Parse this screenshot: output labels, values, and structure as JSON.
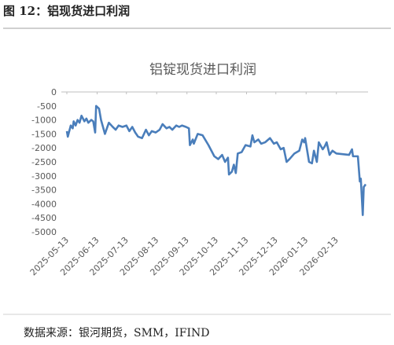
{
  "header": {
    "title": "图 12：铝现货进口利润"
  },
  "source": "数据来源：银河期货，SMM，IFIND",
  "chart_data": {
    "type": "line",
    "title": "铝锭现货进口利润",
    "x": [
      "2025-05-13",
      "2025-05-14",
      "2025-05-17",
      "2025-05-19",
      "2025-05-20",
      "2025-05-22",
      "2025-05-24",
      "2025-05-26",
      "2025-05-28",
      "2025-05-31",
      "2025-06-02",
      "2025-06-04",
      "2025-06-07",
      "2025-06-09",
      "2025-06-11",
      "2025-06-12",
      "2025-06-15",
      "2025-06-17",
      "2025-06-21",
      "2025-06-25",
      "2025-06-29",
      "2025-07-02",
      "2025-07-05",
      "2025-07-09",
      "2025-07-13",
      "2025-07-16",
      "2025-07-19",
      "2025-07-22",
      "2025-07-25",
      "2025-07-29",
      "2025-08-02",
      "2025-08-05",
      "2025-08-08",
      "2025-08-12",
      "2025-08-16",
      "2025-08-19",
      "2025-08-23",
      "2025-08-26",
      "2025-08-29",
      "2025-09-02",
      "2025-09-05",
      "2025-09-08",
      "2025-09-12",
      "2025-09-15",
      "2025-09-16",
      "2025-09-19",
      "2025-09-20",
      "2025-09-24",
      "2025-09-29",
      "2025-10-05",
      "2025-10-11",
      "2025-10-15",
      "2025-10-19",
      "2025-10-22",
      "2025-10-25",
      "2025-10-26",
      "2025-10-29",
      "2025-10-31",
      "2025-11-02",
      "2025-11-04",
      "2025-11-08",
      "2025-11-12",
      "2025-11-17",
      "2025-11-19",
      "2025-11-21",
      "2025-11-25",
      "2025-11-28",
      "2025-12-02",
      "2025-12-07",
      "2025-12-11",
      "2025-12-14",
      "2025-12-18",
      "2025-12-21",
      "2025-12-24",
      "2025-12-27",
      "2026-01-01",
      "2026-01-06",
      "2026-01-09",
      "2026-01-11",
      "2026-01-12",
      "2026-01-16",
      "2026-01-19",
      "2026-01-21",
      "2026-01-24",
      "2026-01-26",
      "2026-01-30",
      "2026-02-01",
      "2026-02-03",
      "2026-02-06",
      "2026-02-09",
      "2026-02-13",
      "2026-02-26",
      "2026-03-01",
      "2026-03-02",
      "2026-03-07",
      "2026-03-09",
      "2026-03-10",
      "2026-03-12",
      "2026-03-13",
      "2026-03-15"
    ],
    "series": [
      {
        "name": "铝锭现货进口利润",
        "color": "#4a7ebb",
        "values": [
          -1400,
          -1600,
          -1200,
          -1300,
          -1050,
          -1200,
          -1000,
          -1100,
          -850,
          -1050,
          -950,
          -1100,
          -1000,
          -1050,
          -1450,
          -500,
          -600,
          -1000,
          -1500,
          -1100,
          -1250,
          -1350,
          -1200,
          -1250,
          -1200,
          -1400,
          -1250,
          -1450,
          -1600,
          -1650,
          -1350,
          -1550,
          -1400,
          -1450,
          -1350,
          -1150,
          -1300,
          -1250,
          -1350,
          -1200,
          -1250,
          -1200,
          -1250,
          -1300,
          -1900,
          -1700,
          -1850,
          -1500,
          -1550,
          -1900,
          -2300,
          -2400,
          -2250,
          -2500,
          -2350,
          -2950,
          -2850,
          -2600,
          -2900,
          -2200,
          -2150,
          -1900,
          -1950,
          -1550,
          -1800,
          -1700,
          -1850,
          -1800,
          -1650,
          -1850,
          -1800,
          -2050,
          -2000,
          -2500,
          -2400,
          -2200,
          -2100,
          -1700,
          -1800,
          -1650,
          -2500,
          -2550,
          -2100,
          -2500,
          -1800,
          -2050,
          -1950,
          -1800,
          -2250,
          -2100,
          -2200,
          -2250,
          -2050,
          -2300,
          -2300,
          -3200,
          -3100,
          -4400,
          -3400,
          -3300
        ]
      }
    ],
    "xlim": [
      "2025-05-13",
      "2026-03-15"
    ],
    "xticks": [
      "2025-05-13",
      "2025-06-13",
      "2025-07-13",
      "2025-08-13",
      "2025-09-13",
      "2025-10-13",
      "2025-11-13",
      "2025-12-13",
      "2026-01-13",
      "2026-02-13"
    ],
    "ylim": [
      -5000,
      0
    ],
    "yticks": [
      0,
      -500,
      -1000,
      -1500,
      -2000,
      -2500,
      -3000,
      -3500,
      -4000,
      -4500,
      -5000
    ],
    "grid": false
  }
}
